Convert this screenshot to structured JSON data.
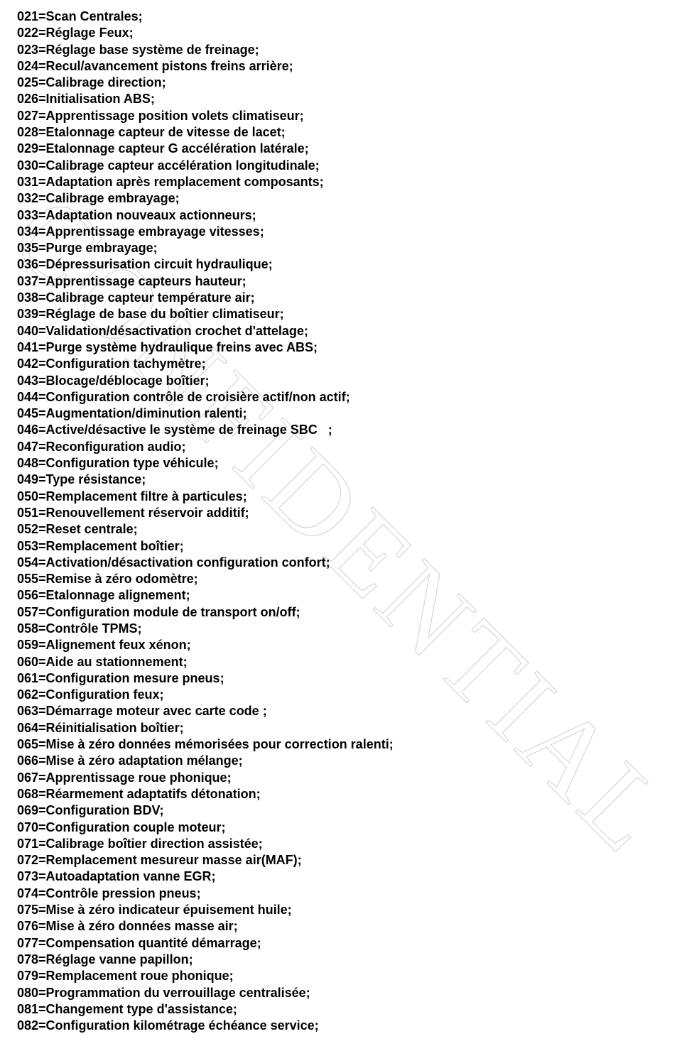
{
  "document": {
    "watermark_text": "CONFIDENTIAL",
    "background_color": "#ffffff",
    "text_color": "#000000",
    "watermark_color": "#d5d5d5",
    "font_family": "Arial",
    "font_size_pt": 13,
    "font_weight": "bold",
    "lines": [
      "021=Scan Centrales;",
      "022=Réglage Feux;",
      "023=Réglage base système de freinage;",
      "024=Recul/avancement pistons freins arrière;",
      "025=Calibrage direction;",
      "026=Initialisation ABS;",
      "027=Apprentissage position volets climatiseur;",
      "028=Etalonnage capteur de vitesse de lacet;",
      "029=Etalonnage capteur G accélération latérale;",
      "030=Calibrage capteur accélération longitudinale;",
      "031=Adaptation après remplacement composants;",
      "032=Calibrage embrayage;",
      "033=Adaptation nouveaux actionneurs;",
      "034=Apprentissage embrayage vitesses;",
      "035=Purge embrayage;",
      "036=Dépressurisation circuit hydraulique;",
      "037=Apprentissage capteurs hauteur;",
      "038=Calibrage capteur température air;",
      "039=Réglage de base du boîtier climatiseur;",
      "040=Validation/désactivation crochet d'attelage;",
      "041=Purge système hydraulique freins avec ABS;",
      "042=Configuration tachymètre;",
      "043=Blocage/déblocage boîtier;",
      "044=Configuration contrôle de croisière actif/non actif;",
      "045=Augmentation/diminution ralenti;",
      "046=Active/désactive le système de freinage SBC   ;",
      "047=Reconfiguration audio;",
      "048=Configuration type véhicule;",
      "049=Type résistance;",
      "050=Remplacement filtre à particules;",
      "051=Renouvellement réservoir additif;",
      "052=Reset centrale;",
      "053=Remplacement boîtier;",
      "054=Activation/désactivation configuration confort;",
      "055=Remise à zéro odomètre;",
      "056=Etalonnage alignement;",
      "057=Configuration module de transport on/off;",
      "058=Contrôle TPMS;",
      "059=Alignement feux xénon;",
      "060=Aide au stationnement;",
      "061=Configuration mesure pneus;",
      "062=Configuration feux;",
      "063=Démarrage moteur avec carte code ;",
      "064=Réinitialisation boîtier;",
      "065=Mise à zéro données mémorisées pour correction ralenti;",
      "066=Mise à zéro adaptation mélange;",
      "067=Apprentissage roue phonique;",
      "068=Réarmement adaptatifs détonation;",
      "069=Configuration BDV;",
      "070=Configuration couple moteur;",
      "071=Calibrage boîtier direction assistée;",
      "072=Remplacement mesureur masse air(MAF);",
      "073=Autoadaptation vanne EGR;",
      "074=Contrôle pression pneus;",
      "075=Mise à zéro indicateur épuisement huile;",
      "076=Mise à zéro données masse air;",
      "077=Compensation quantité démarrage;",
      "078=Réglage vanne papillon;",
      "079=Remplacement roue phonique;",
      "080=Programmation du verrouillage centralisée;",
      "081=Changement type d'assistance;",
      "082=Configuration kilométrage échéance service;"
    ]
  }
}
